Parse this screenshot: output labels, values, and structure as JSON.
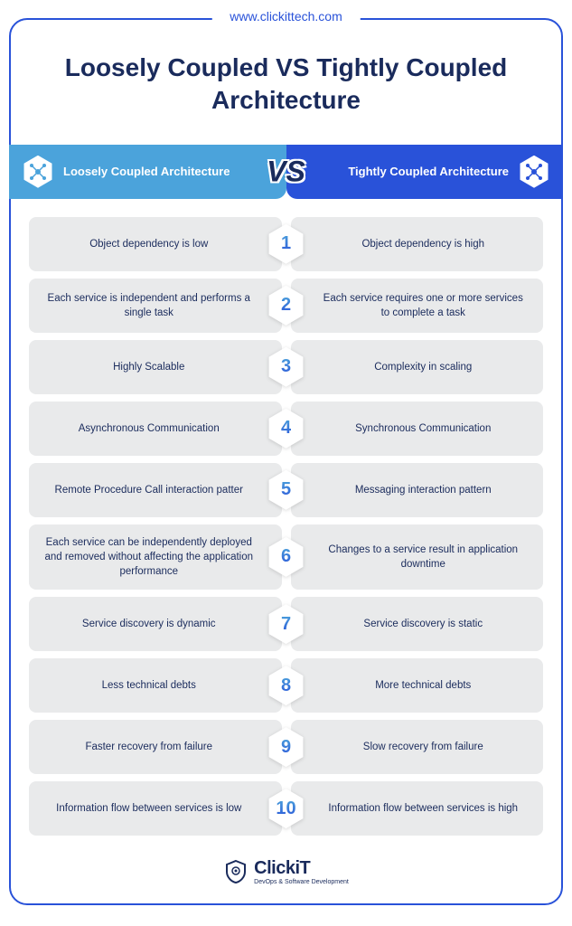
{
  "url": "www.clickittech.com",
  "title": "Loosely Coupled VS Tightly Coupled Architecture",
  "colors": {
    "frame_border": "#2952d9",
    "title_color": "#1a2b5c",
    "left_header_bg": "#4ba3db",
    "right_header_bg": "#2952d9",
    "header_text": "#ffffff",
    "cell_bg": "#e9eaeb",
    "cell_text": "#1a2b5c",
    "number_gradient_top": "#4ba3db",
    "number_gradient_bottom": "#2952d9"
  },
  "header": {
    "left_label": "Loosely Coupled Architecture",
    "right_label": "Tightly Coupled Architecture",
    "vs_label": "VS"
  },
  "rows": [
    {
      "num": "1",
      "left": "Object dependency is low",
      "right": "Object dependency is high"
    },
    {
      "num": "2",
      "left": "Each service is independent and performs a single task",
      "right": "Each service requires one or more services to complete a task"
    },
    {
      "num": "3",
      "left": "Highly Scalable",
      "right": "Complexity in scaling"
    },
    {
      "num": "4",
      "left": "Asynchronous Communication",
      "right": "Synchronous Communication"
    },
    {
      "num": "5",
      "left": "Remote Procedure Call interaction patter",
      "right": "Messaging interaction pattern"
    },
    {
      "num": "6",
      "left": "Each service can be independently deployed and removed without affecting the application performance",
      "right": "Changes to a service result in application downtime"
    },
    {
      "num": "7",
      "left": "Service discovery is dynamic",
      "right": "Service discovery is static"
    },
    {
      "num": "8",
      "left": "Less technical debts",
      "right": "More technical debts"
    },
    {
      "num": "9",
      "left": "Faster recovery from failure",
      "right": "Slow recovery from failure"
    },
    {
      "num": "10",
      "left": "Information flow between services is low",
      "right": "Information flow between services is high"
    }
  ],
  "footer": {
    "brand": "ClickiT",
    "tagline": "DevOps & Software Development"
  }
}
